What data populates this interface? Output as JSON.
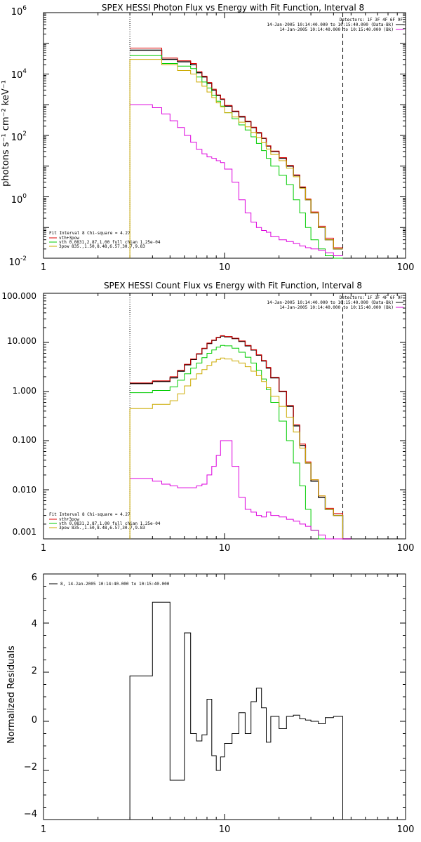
{
  "chart_data": [
    {
      "type": "line",
      "scale": "log-log",
      "title": "SPEX HESSI Photon Flux vs Energy with Fit Function, Interval 8",
      "ylabel": "photons s⁻¹ cm⁻² keV⁻¹",
      "xlim": [
        1,
        100
      ],
      "ylim": [
        0.01,
        1000000
      ],
      "x_ticks": [
        "1",
        "10",
        "100"
      ],
      "y_ticks": [
        {
          "base": "10",
          "exp": "-2",
          "value": 0.01
        },
        {
          "base": "10",
          "exp": "0",
          "value": 1
        },
        {
          "base": "10",
          "exp": "2",
          "value": 100
        },
        {
          "base": "10",
          "exp": "4",
          "value": 10000
        },
        {
          "base": "10",
          "exp": "6",
          "value": 1000000
        }
      ],
      "vlines": [
        {
          "x": 3,
          "style": "dotted"
        },
        {
          "x": 45,
          "style": "dashed"
        }
      ],
      "legend_right": {
        "header": "Detectors: 1F 3F 4F 6F 9F",
        "entries": [
          {
            "text": "14-Jan-2005 10:14:40.000 to 10:15:40.000 (Data-Bk)",
            "color": "#000000"
          },
          {
            "text": "14-Jan-2005 10:14:40.000 to 10:15:40.000 (Bk)",
            "color": "#dd00dd"
          }
        ]
      },
      "legend_left": {
        "header": "Fit Interval 8   Chi-square = 4.27",
        "entries": [
          {
            "text": "vth+3pow",
            "color": "#dd0000"
          },
          {
            "text": "vth 0.0831,2.87,1.00  full chian 1.25e-04",
            "color": "#00cc00"
          },
          {
            "text": "3pow 835.,1.50,8.48,6.57,30.7,9.83",
            "color": "#ccaa00"
          }
        ]
      },
      "bin_edges": [
        3.0,
        3.5,
        4.0,
        4.5,
        5.0,
        5.5,
        6.0,
        6.5,
        7.0,
        7.5,
        8.0,
        8.5,
        9.0,
        9.5,
        10.0,
        11.0,
        12.0,
        13.0,
        14.0,
        15.0,
        16.0,
        17.0,
        18.0,
        20.0,
        22.0,
        24.0,
        26.0,
        28.0,
        30.0,
        33.0,
        36.0,
        40.0,
        45.0
      ],
      "series": [
        {
          "color": "#000000",
          "values": [
            60000,
            60000,
            60000,
            30000,
            30000,
            25000,
            25000,
            20000,
            11000,
            8000,
            5000,
            3000,
            2000,
            1500,
            900,
            600,
            400,
            280,
            180,
            120,
            80,
            45,
            30,
            18,
            10,
            5,
            2,
            0.8,
            0.3,
            0.1,
            0.04,
            0.02
          ]
        },
        {
          "color": "#dd0000",
          "values": [
            70000,
            70000,
            70000,
            33000,
            33000,
            27000,
            27000,
            22000,
            12000,
            8500,
            5300,
            3200,
            2100,
            1550,
            950,
            620,
            420,
            290,
            185,
            125,
            82,
            46,
            31,
            19,
            10.5,
            5.2,
            2.1,
            0.85,
            0.32,
            0.11,
            0.045,
            0.022
          ]
        },
        {
          "color": "#00cc00",
          "values": [
            40000,
            40000,
            40000,
            22000,
            22000,
            18000,
            18000,
            15000,
            8000,
            5500,
            3500,
            2000,
            1300,
            900,
            550,
            350,
            220,
            150,
            90,
            55,
            32,
            18,
            10,
            5,
            2.5,
            0.8,
            0.3,
            0.1,
            0.04,
            0.02,
            0.012,
            0.01
          ]
        },
        {
          "color": "#ccaa00",
          "values": [
            30000,
            30000,
            30000,
            20000,
            20000,
            13000,
            13000,
            10000,
            5500,
            4000,
            2600,
            1700,
            1150,
            850,
            550,
            400,
            270,
            190,
            125,
            85,
            58,
            36,
            24,
            15,
            8.5,
            4.5,
            1.9,
            0.8,
            0.3,
            0.1,
            0.04,
            0.02
          ]
        },
        {
          "color": "#dd00dd",
          "values": [
            1000,
            1000,
            800,
            500,
            300,
            180,
            100,
            60,
            35,
            25,
            20,
            18,
            15,
            13,
            8,
            3,
            0.8,
            0.3,
            0.15,
            0.1,
            0.08,
            0.07,
            0.05,
            0.04,
            0.035,
            0.03,
            0.025,
            0.022,
            0.02,
            0.018,
            0.015,
            0.012
          ]
        }
      ]
    },
    {
      "type": "line",
      "scale": "log-log",
      "title": "SPEX HESSI Count Flux vs Energy with Fit Function, Interval 8",
      "ylabel": "",
      "xlim": [
        1,
        100
      ],
      "ylim": [
        0.001,
        100
      ],
      "x_ticks": [
        "1",
        "10",
        "100"
      ],
      "y_ticks": [
        "0.001",
        "0.010",
        "0.100",
        "1.000",
        "10.000",
        "100.000"
      ],
      "vlines": [
        {
          "x": 3,
          "style": "dotted"
        },
        {
          "x": 45,
          "style": "dashed"
        }
      ],
      "legend_right": {
        "header": "Detectors: 1F 3F 4F 6F 9F",
        "entries": [
          {
            "text": "14-Jan-2005 10:14:40.000 to 10:15:40.000 (Data-Bk)",
            "color": "#000000"
          },
          {
            "text": "14-Jan-2005 10:14:40.000 to 10:15:40.000 (Bk)",
            "color": "#dd00dd"
          }
        ]
      },
      "legend_left": {
        "header": "Fit Interval 8   Chi-square = 4.27",
        "entries": [
          {
            "text": "vth+3pow",
            "color": "#dd0000"
          },
          {
            "text": "vth 0.0831,2.87,1.00  full chian 1.25e-04",
            "color": "#00cc00"
          },
          {
            "text": "3pow 835.,1.50,8.48,6.57,30.7,9.83",
            "color": "#ccaa00"
          }
        ]
      },
      "bin_edges": [
        3.0,
        3.5,
        4.0,
        4.5,
        5.0,
        5.5,
        6.0,
        6.5,
        7.0,
        7.5,
        8.0,
        8.5,
        9.0,
        9.5,
        10.0,
        11.0,
        12.0,
        13.0,
        14.0,
        15.0,
        16.0,
        17.0,
        18.0,
        20.0,
        22.0,
        24.0,
        26.0,
        28.0,
        30.0,
        33.0,
        36.0,
        40.0,
        45.0,
        50.0
      ],
      "series": [
        {
          "color": "#000000",
          "values": [
            1.45,
            1.45,
            1.6,
            1.6,
            1.9,
            2.6,
            3.5,
            4.5,
            5.8,
            7.5,
            9.5,
            11.0,
            12.5,
            13.5,
            13.0,
            12.0,
            10.5,
            8.5,
            7.0,
            5.5,
            4.2,
            3.0,
            1.9,
            1.0,
            0.5,
            0.2,
            0.08,
            0.035,
            0.015,
            0.007,
            0.004,
            0.003,
            0.001
          ]
        },
        {
          "color": "#dd0000",
          "values": [
            1.5,
            1.5,
            1.65,
            1.65,
            2.0,
            2.7,
            3.6,
            4.6,
            5.9,
            7.6,
            9.7,
            11.2,
            12.7,
            13.7,
            13.2,
            12.2,
            10.7,
            8.7,
            7.1,
            5.6,
            4.3,
            3.1,
            1.95,
            1.02,
            0.52,
            0.21,
            0.085,
            0.037,
            0.016,
            0.0075,
            0.0042,
            0.0033,
            0.001
          ]
        },
        {
          "color": "#00cc00",
          "values": [
            0.95,
            0.95,
            1.05,
            1.05,
            1.25,
            1.7,
            2.3,
            3.0,
            3.8,
            4.9,
            6.0,
            7.0,
            8.0,
            8.7,
            8.5,
            7.6,
            6.3,
            5.0,
            3.8,
            2.7,
            1.8,
            1.1,
            0.6,
            0.25,
            0.1,
            0.035,
            0.012,
            0.004,
            0.0015,
            0.001,
            0.001,
            0.001,
            0.001
          ]
        },
        {
          "color": "#ccaa00",
          "values": [
            0.45,
            0.45,
            0.55,
            0.55,
            0.65,
            0.9,
            1.3,
            1.8,
            2.3,
            2.8,
            3.4,
            4.0,
            4.5,
            4.8,
            4.6,
            4.2,
            3.8,
            3.2,
            2.6,
            2.1,
            1.6,
            1.2,
            0.8,
            0.5,
            0.3,
            0.15,
            0.07,
            0.035,
            0.016,
            0.0075,
            0.004,
            0.003,
            0.001
          ]
        },
        {
          "color": "#dd00dd",
          "values": [
            0.017,
            0.017,
            0.015,
            0.013,
            0.012,
            0.011,
            0.011,
            0.011,
            0.012,
            0.013,
            0.02,
            0.03,
            0.05,
            0.1,
            0.1,
            0.03,
            0.007,
            0.004,
            0.0035,
            0.003,
            0.0028,
            0.0035,
            0.003,
            0.0028,
            0.0025,
            0.0023,
            0.002,
            0.0018,
            0.0015,
            0.0012,
            0.001,
            0.001,
            0.001
          ]
        }
      ]
    },
    {
      "type": "line",
      "scale": "log-x",
      "title": "",
      "ylabel": "Normalized Residuals",
      "xlim": [
        1,
        100
      ],
      "ylim": [
        -4,
        6
      ],
      "x_ticks": [
        "1",
        "10",
        "100"
      ],
      "y_ticks": [
        "−4",
        "−2",
        "0",
        "2",
        "4",
        "6"
      ],
      "legend": {
        "text": "8, 14-Jan-2005 10:14:40.000 to 10:15:40.000",
        "color": "#000000"
      },
      "bin_edges": [
        3.0,
        3.5,
        4.0,
        4.5,
        5.0,
        5.5,
        6.0,
        6.5,
        7.0,
        7.5,
        8.0,
        8.5,
        9.0,
        9.5,
        10.0,
        11.0,
        12.0,
        13.0,
        14.0,
        15.0,
        16.0,
        17.0,
        18.0,
        20.0,
        22.0,
        24.0,
        26.0,
        28.0,
        30.0,
        33.0,
        36.0,
        40.0,
        45.0
      ],
      "values": [
        1.85,
        1.85,
        4.85,
        4.85,
        -2.4,
        -2.4,
        3.6,
        -0.5,
        -0.8,
        -0.55,
        0.9,
        -1.4,
        -2.0,
        -1.45,
        -0.9,
        -0.5,
        0.35,
        -0.5,
        0.8,
        1.35,
        0.55,
        -0.85,
        0.2,
        -0.3,
        0.2,
        0.25,
        0.1,
        0.05,
        0.0,
        -0.1,
        0.15,
        0.2
      ]
    }
  ]
}
